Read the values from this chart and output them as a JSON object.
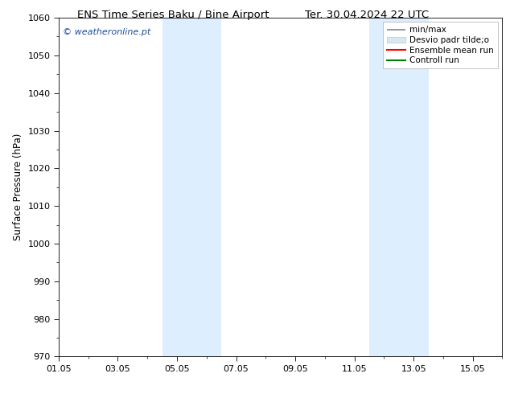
{
  "title_left": "ENS Time Series Baku / Bine Airport",
  "title_right": "Ter. 30.04.2024 22 UTC",
  "ylabel": "Surface Pressure (hPa)",
  "watermark": "© weatheronline.pt",
  "ylim": [
    970,
    1060
  ],
  "yticks": [
    970,
    980,
    990,
    1000,
    1010,
    1020,
    1030,
    1040,
    1050,
    1060
  ],
  "xtick_labels": [
    "01.05",
    "03.05",
    "05.05",
    "07.05",
    "09.05",
    "11.05",
    "13.05",
    "15.05"
  ],
  "xtick_positions": [
    0,
    2,
    4,
    6,
    8,
    10,
    12,
    14
  ],
  "x_min": 0,
  "x_max": 15,
  "shaded_bands": [
    {
      "x_start": 3.5,
      "x_end": 4.5,
      "color": "#ddeeff"
    },
    {
      "x_start": 4.5,
      "x_end": 5.5,
      "color": "#ddeeff"
    },
    {
      "x_start": 10.5,
      "x_end": 11.5,
      "color": "#ddeeff"
    },
    {
      "x_start": 11.5,
      "x_end": 12.5,
      "color": "#ddeeff"
    }
  ],
  "legend_entries": [
    {
      "label": "min/max",
      "color": "#888888",
      "lw": 1.2
    },
    {
      "label": "Desvio padr tilde;o",
      "color": "#ddeeff",
      "lw": 6
    },
    {
      "label": "Ensemble mean run",
      "color": "red",
      "lw": 1.5
    },
    {
      "label": "Controll run",
      "color": "green",
      "lw": 1.5
    }
  ],
  "background_color": "#ffffff",
  "plot_bg_color": "#ffffff",
  "title_fontsize": 9.5,
  "axis_fontsize": 8.5,
  "tick_fontsize": 8,
  "watermark_fontsize": 8,
  "legend_fontsize": 7.5
}
